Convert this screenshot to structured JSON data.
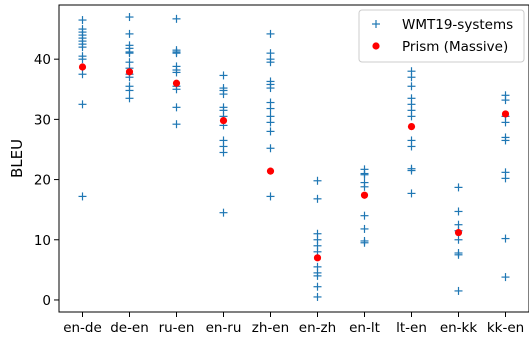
{
  "chart_data": {
    "type": "scatter",
    "title": "",
    "xlabel": "",
    "ylabel": "BLEU",
    "categories": [
      "en-de",
      "de-en",
      "ru-en",
      "en-ru",
      "zh-en",
      "en-zh",
      "en-lt",
      "lt-en",
      "en-kk",
      "kk-en"
    ],
    "ylim": [
      -2,
      49
    ],
    "yticks": [
      0,
      10,
      20,
      30,
      40
    ],
    "grid": false,
    "legend_position": "top-right",
    "series": [
      {
        "name": "WMT19-systems",
        "marker": "plus",
        "color": "#1f77b4",
        "values": [
          [
            46.5,
            45.0,
            44.5,
            44.0,
            43.5,
            43.0,
            42.5,
            42.0,
            40.5,
            40.0,
            37.5,
            32.5,
            17.2
          ],
          [
            47.0,
            44.2,
            42.3,
            41.8,
            41.2,
            41.0,
            39.5,
            38.5,
            37.5,
            37.0,
            35.5,
            34.8,
            33.5
          ],
          [
            46.7,
            41.5,
            41.2,
            41.0,
            38.8,
            38.2,
            37.8,
            35.5,
            35.0,
            32.0,
            29.2
          ],
          [
            37.3,
            35.2,
            34.8,
            34.2,
            32.0,
            31.5,
            30.5,
            29.0,
            26.5,
            25.5,
            24.5,
            14.5
          ],
          [
            44.2,
            41.0,
            40.0,
            39.5,
            36.3,
            35.8,
            35.2,
            32.8,
            31.8,
            30.5,
            29.5,
            28.0,
            25.2,
            17.2
          ],
          [
            19.8,
            16.8,
            11.0,
            10.0,
            9.0,
            8.0,
            5.5,
            4.5,
            4.0,
            2.2,
            0.5
          ],
          [
            21.7,
            21.0,
            20.8,
            19.5,
            18.8,
            14.0,
            11.8,
            9.8,
            9.5
          ],
          [
            38.0,
            37.0,
            35.5,
            33.5,
            32.5,
            31.5,
            30.5,
            26.5,
            25.5,
            21.8,
            21.5,
            17.7
          ],
          [
            18.7,
            14.7,
            12.5,
            11.5,
            10.0,
            7.8,
            7.5,
            1.5
          ],
          [
            34.0,
            33.2,
            30.5,
            29.5,
            27.0,
            26.5,
            21.2,
            20.2,
            10.2,
            3.8
          ]
        ]
      },
      {
        "name": "Prism (Massive)",
        "marker": "circle",
        "color": "#ff0000",
        "values": [
          38.7,
          37.9,
          36.0,
          29.8,
          21.4,
          7.0,
          17.4,
          28.8,
          11.2,
          30.9
        ]
      }
    ]
  }
}
